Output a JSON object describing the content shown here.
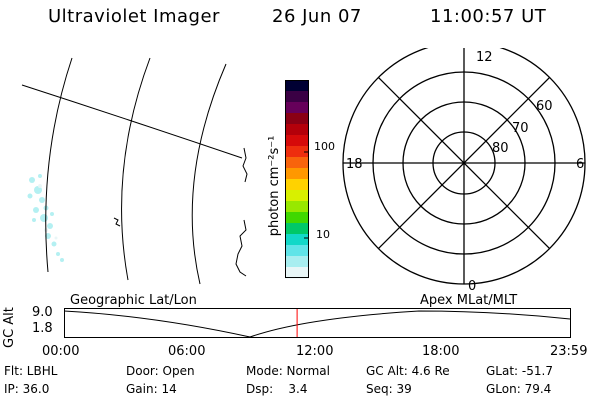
{
  "header": {
    "title": "Ultraviolet Imager",
    "date": "26 Jun 07",
    "time": "11:00:57 UT"
  },
  "colorbar": {
    "unit_label": "photon cm⁻²s⁻¹",
    "tick_labels": [
      "100",
      "10"
    ],
    "colors": [
      "#000033",
      "#3a0044",
      "#66005a",
      "#8a0014",
      "#b4000a",
      "#d60a0a",
      "#ee2e0e",
      "#f8640c",
      "#ff9800",
      "#ffd200",
      "#d8f000",
      "#98e800",
      "#40d800",
      "#00c868",
      "#12d8c8",
      "#60e4e8",
      "#a8eef0",
      "#e8f6f7"
    ]
  },
  "polar_grid": {
    "mlt_labels": [
      "12",
      "18",
      "6",
      "0"
    ],
    "lat_labels": [
      "60",
      "70",
      "80"
    ]
  },
  "timeline": {
    "left_title": "Geographic Lat/Lon",
    "right_title": "Apex  MLat/MLT",
    "axis_label": "GC Alt",
    "y_max": "9.0",
    "y_min": "1.8",
    "x_ticks": [
      "00:00",
      "06:00",
      "12:00",
      "18:00",
      "23:59"
    ],
    "current_time_fraction": 0.4597
  },
  "info": [
    [
      "Flt: LBHL",
      "Door: Open",
      "Mode: Normal",
      "GC Alt: 4.6 Re",
      "GLat: -51.7"
    ],
    [
      "IP: 36.0",
      "Gain: 14",
      "Dsp:    3.4",
      "Seq: 39",
      "GLon: 79.4"
    ]
  ]
}
